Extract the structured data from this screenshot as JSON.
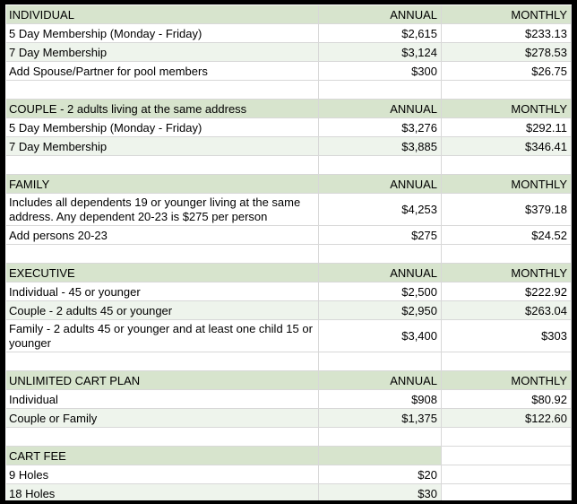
{
  "table": {
    "columns": [
      "label",
      "annual",
      "monthly"
    ],
    "colors": {
      "section_header_bg": "#d7e4cd",
      "banded_row_bg": "#eef4ec",
      "gridline": "#d8d8d8",
      "outer_border": "#000000"
    },
    "rows": [
      {
        "type": "header",
        "cells": [
          "INDIVIDUAL",
          "ANNUAL",
          "MONTHLY"
        ]
      },
      {
        "type": "data",
        "band": "white",
        "cells": [
          "5 Day Membership (Monday - Friday)",
          "$2,615",
          "$233.13"
        ]
      },
      {
        "type": "data",
        "band": "tint",
        "cells": [
          "7 Day Membership",
          "$3,124",
          "$278.53"
        ]
      },
      {
        "type": "data",
        "band": "white",
        "cells": [
          "Add Spouse/Partner for pool members",
          "$300",
          "$26.75"
        ]
      },
      {
        "type": "spacer",
        "cells": [
          "",
          "",
          ""
        ]
      },
      {
        "type": "header",
        "cells": [
          "COUPLE - 2 adults living at the same address",
          "ANNUAL",
          "MONTHLY"
        ]
      },
      {
        "type": "data",
        "band": "white",
        "cells": [
          "5 Day Membership (Monday - Friday)",
          "$3,276",
          "$292.11"
        ]
      },
      {
        "type": "data",
        "band": "tint",
        "cells": [
          "7 Day Membership",
          "$3,885",
          "$346.41"
        ]
      },
      {
        "type": "spacer",
        "cells": [
          "",
          "",
          ""
        ]
      },
      {
        "type": "header",
        "cells": [
          "FAMILY",
          "ANNUAL",
          "MONTHLY"
        ]
      },
      {
        "type": "data",
        "band": "white",
        "tall": true,
        "cells": [
          "Includes all dependents 19 or younger living at the same address. Any dependent 20-23 is $275 per person",
          "$4,253",
          "$379.18"
        ]
      },
      {
        "type": "data",
        "band": "white",
        "cells": [
          "Add persons 20-23",
          "$275",
          "$24.52"
        ]
      },
      {
        "type": "spacer",
        "cells": [
          "",
          "",
          ""
        ]
      },
      {
        "type": "header",
        "cells": [
          "EXECUTIVE",
          "ANNUAL",
          "MONTHLY"
        ]
      },
      {
        "type": "data",
        "band": "white",
        "cells": [
          "Individual - 45 or younger",
          "$2,500",
          "$222.92"
        ]
      },
      {
        "type": "data",
        "band": "tint",
        "cells": [
          "Couple - 2 adults 45 or younger",
          "$2,950",
          "$263.04"
        ]
      },
      {
        "type": "data",
        "band": "white",
        "tall": true,
        "cells": [
          "Family - 2 adults 45 or younger and at least one child 15 or younger",
          "$3,400",
          "$303"
        ]
      },
      {
        "type": "spacer",
        "cells": [
          "",
          "",
          ""
        ]
      },
      {
        "type": "header",
        "cells": [
          "UNLIMITED CART PLAN",
          "ANNUAL",
          "MONTHLY"
        ]
      },
      {
        "type": "data",
        "band": "white",
        "cells": [
          "Individual",
          "$908",
          "$80.92"
        ]
      },
      {
        "type": "data",
        "band": "tint",
        "cells": [
          "Couple or Family",
          "$1,375",
          "$122.60"
        ]
      },
      {
        "type": "spacer",
        "cells": [
          "",
          "",
          ""
        ]
      },
      {
        "type": "header",
        "no_fill_cols": [
          2
        ],
        "cells": [
          "CART FEE",
          "",
          ""
        ]
      },
      {
        "type": "data",
        "band": "white",
        "cells": [
          "9 Holes",
          "$20",
          ""
        ]
      },
      {
        "type": "data",
        "band": "tint",
        "no_fill_cols": [
          2
        ],
        "cells": [
          "18 Holes",
          "$30",
          ""
        ]
      }
    ]
  }
}
